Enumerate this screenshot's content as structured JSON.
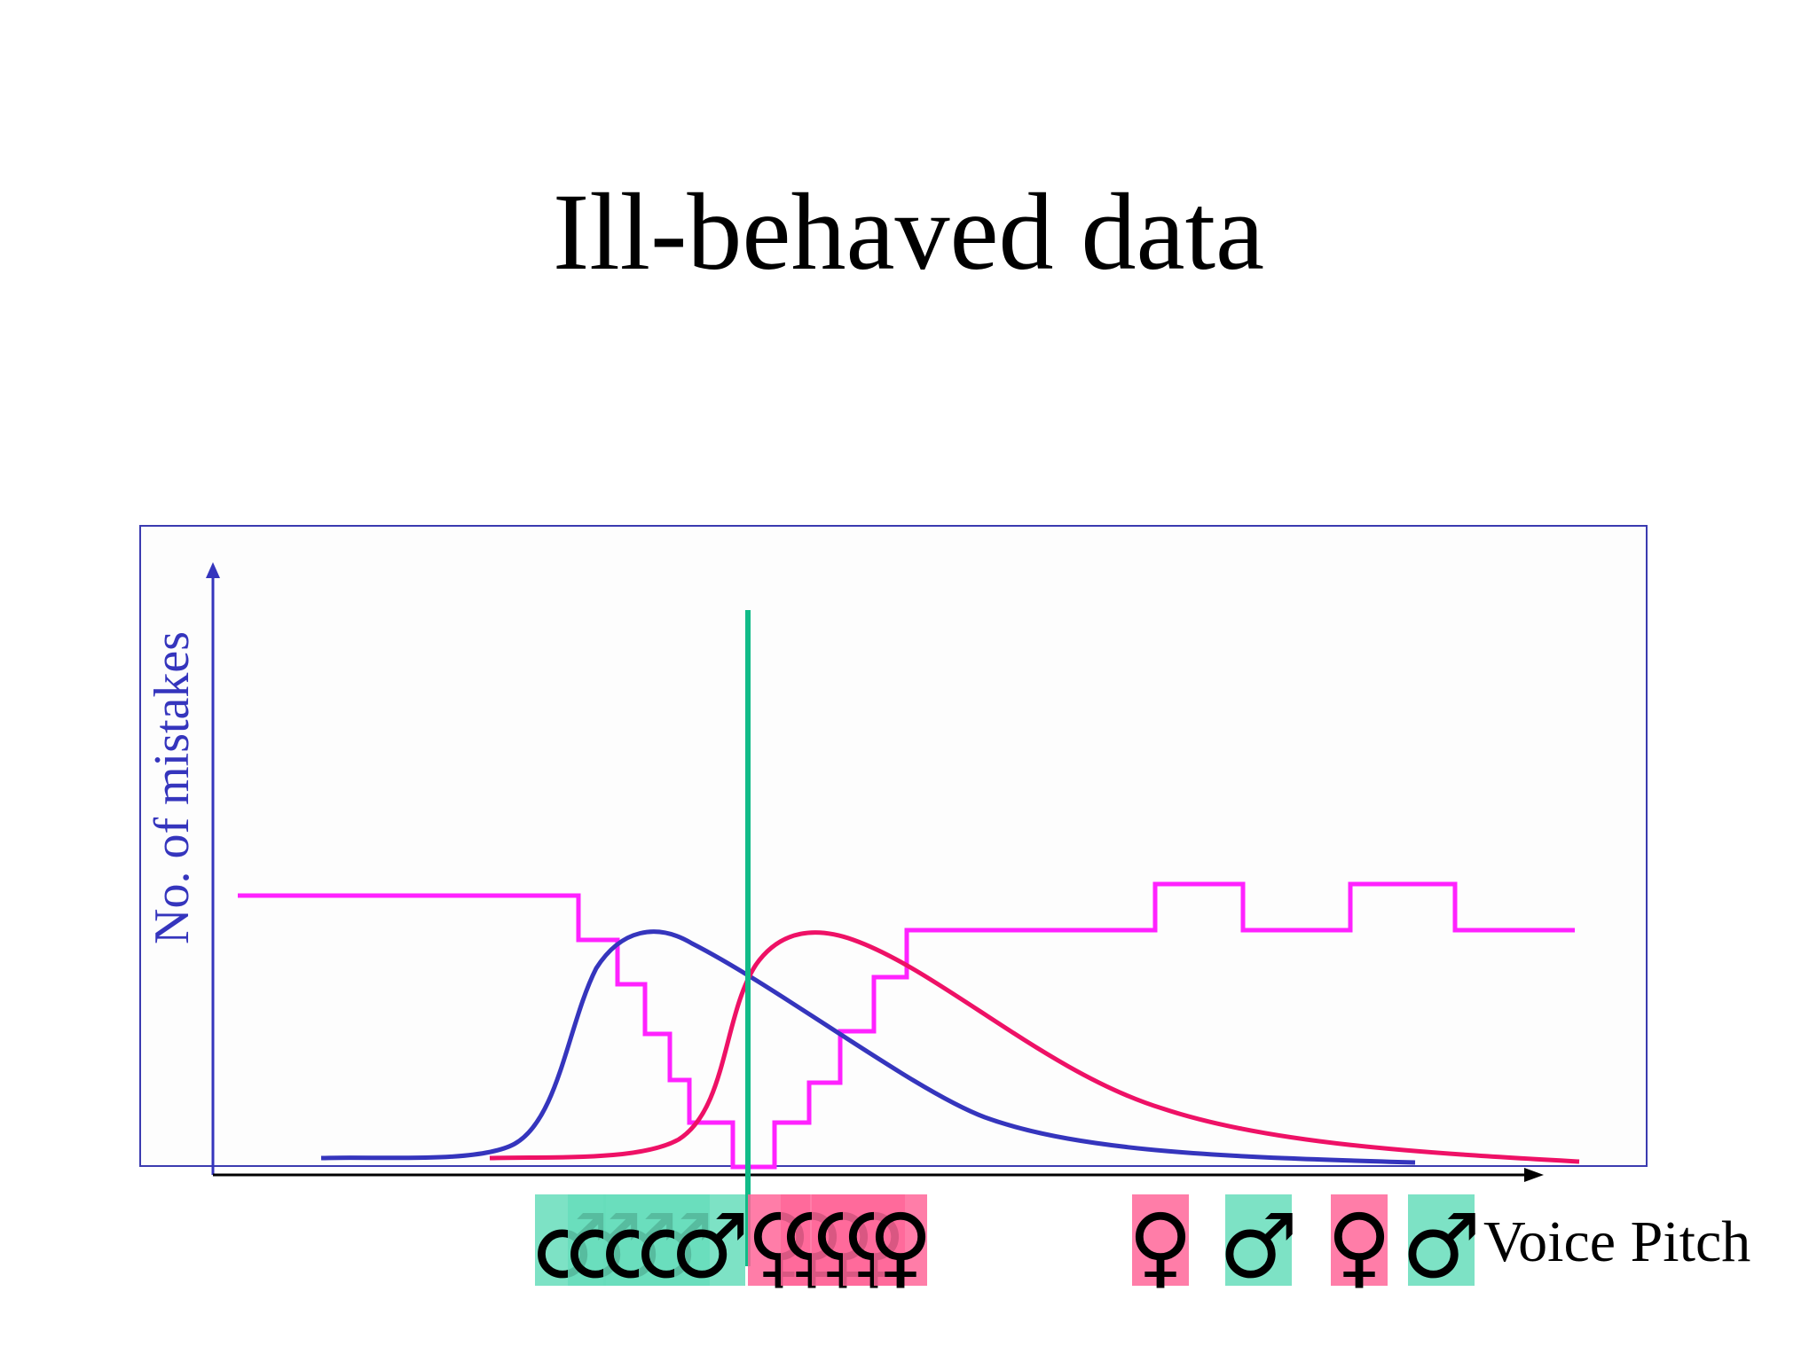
{
  "title": "Ill-behaved data",
  "y_axis_label": "No. of mistakes",
  "x_axis_label": "Voice Pitch",
  "colors": {
    "frame": "#3b3bb0",
    "male_curve": "#3535bd",
    "female_curve": "#ee1166",
    "error_step": "#ff22ff",
    "threshold": "#11bb88",
    "male_box": "#66ddbb",
    "female_box": "#ff6699",
    "axis": "#000000",
    "axis_label": "#3535bd"
  },
  "legend_symbols": {
    "male": "♂",
    "female": "♀"
  },
  "samples": [
    {
      "sex": "male"
    },
    {
      "sex": "male"
    },
    {
      "sex": "male"
    },
    {
      "sex": "male"
    },
    {
      "sex": "male"
    },
    {
      "sex": "female"
    },
    {
      "sex": "female"
    },
    {
      "sex": "female"
    },
    {
      "sex": "female"
    },
    {
      "sex": "female"
    },
    {
      "sex": "female"
    },
    {
      "sex": "male"
    },
    {
      "sex": "female"
    },
    {
      "sex": "male"
    }
  ]
}
